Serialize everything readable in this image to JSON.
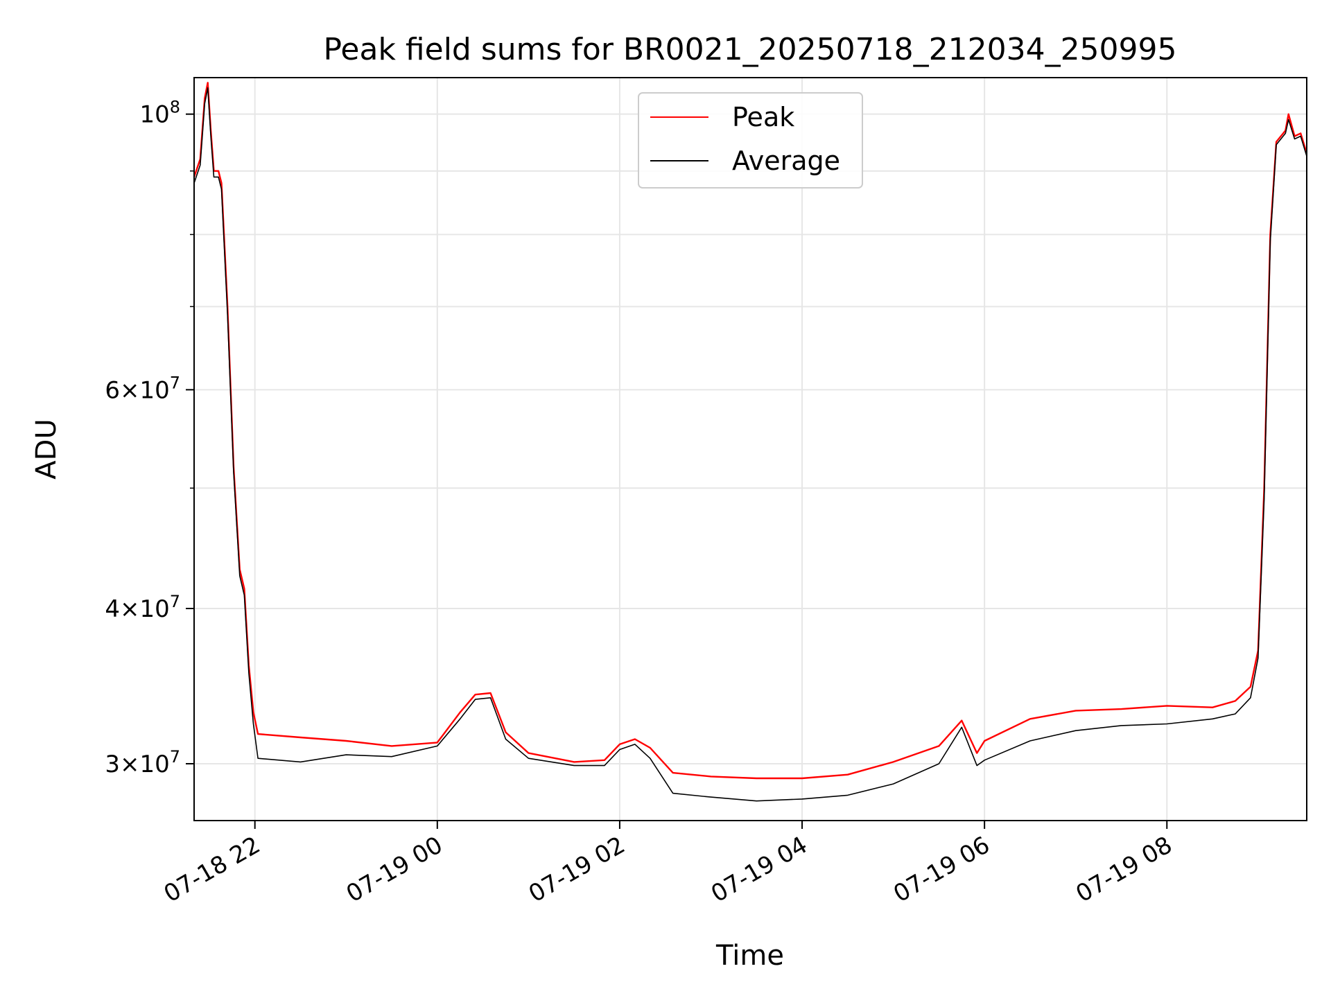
{
  "chart_data": {
    "type": "line",
    "title": "Peak field sums for BR0021_20250718_212034_250995",
    "xlabel": "Time",
    "ylabel": "ADU",
    "yscale": "log",
    "grid": true,
    "legend_position": "top-center",
    "xlim": [
      "2025-07-18 21:20",
      "2025-07-19 09:32"
    ],
    "ylim": [
      27000000,
      107000000
    ],
    "x_ticks": [
      {
        "value": "2025-07-18 22:00",
        "label": "07-18 22"
      },
      {
        "value": "2025-07-19 00:00",
        "label": "07-19 00"
      },
      {
        "value": "2025-07-19 02:00",
        "label": "07-19 02"
      },
      {
        "value": "2025-07-19 04:00",
        "label": "07-19 04"
      },
      {
        "value": "2025-07-19 06:00",
        "label": "07-19 06"
      },
      {
        "value": "2025-07-19 08:00",
        "label": "07-19 08"
      }
    ],
    "y_ticks_major": [
      {
        "value": 30000000,
        "base": "3",
        "exp": "7"
      },
      {
        "value": 40000000,
        "base": "4",
        "exp": "7"
      },
      {
        "value": 60000000,
        "base": "6",
        "exp": "7"
      },
      {
        "value": 100000000,
        "base": "",
        "exp": "8"
      }
    ],
    "y_ticks_minor": [
      50000000,
      70000000,
      80000000,
      90000000
    ],
    "series": [
      {
        "name": "Peak",
        "color": "#ff0000",
        "points": [
          [
            "2025-07-18 21:20",
            89000000
          ],
          [
            "2025-07-18 21:24",
            92000000
          ],
          [
            "2025-07-18 21:27",
            103000000
          ],
          [
            "2025-07-18 21:29",
            106000000
          ],
          [
            "2025-07-18 21:31",
            97000000
          ],
          [
            "2025-07-18 21:33",
            90000000
          ],
          [
            "2025-07-18 21:36",
            90000000
          ],
          [
            "2025-07-18 21:38",
            88000000
          ],
          [
            "2025-07-18 21:42",
            70000000
          ],
          [
            "2025-07-18 21:46",
            52000000
          ],
          [
            "2025-07-18 21:50",
            43000000
          ],
          [
            "2025-07-18 21:53",
            41500000
          ],
          [
            "2025-07-18 21:56",
            36000000
          ],
          [
            "2025-07-18 21:59",
            33000000
          ],
          [
            "2025-07-18 22:02",
            31700000
          ],
          [
            "2025-07-18 22:30",
            31500000
          ],
          [
            "2025-07-18 23:00",
            31300000
          ],
          [
            "2025-07-18 23:30",
            31000000
          ],
          [
            "2025-07-19 00:00",
            31200000
          ],
          [
            "2025-07-19 00:15",
            33000000
          ],
          [
            "2025-07-19 00:25",
            34100000
          ],
          [
            "2025-07-19 00:35",
            34200000
          ],
          [
            "2025-07-19 00:45",
            31800000
          ],
          [
            "2025-07-19 01:00",
            30600000
          ],
          [
            "2025-07-19 01:30",
            30100000
          ],
          [
            "2025-07-19 01:50",
            30200000
          ],
          [
            "2025-07-19 02:00",
            31100000
          ],
          [
            "2025-07-19 02:10",
            31400000
          ],
          [
            "2025-07-19 02:20",
            30900000
          ],
          [
            "2025-07-19 02:35",
            29500000
          ],
          [
            "2025-07-19 03:00",
            29300000
          ],
          [
            "2025-07-19 03:30",
            29200000
          ],
          [
            "2025-07-19 04:00",
            29200000
          ],
          [
            "2025-07-19 04:30",
            29400000
          ],
          [
            "2025-07-19 05:00",
            30100000
          ],
          [
            "2025-07-19 05:30",
            31000000
          ],
          [
            "2025-07-19 05:45",
            32500000
          ],
          [
            "2025-07-19 05:55",
            30600000
          ],
          [
            "2025-07-19 06:00",
            31300000
          ],
          [
            "2025-07-19 06:30",
            32600000
          ],
          [
            "2025-07-19 07:00",
            33100000
          ],
          [
            "2025-07-19 07:30",
            33200000
          ],
          [
            "2025-07-19 08:00",
            33400000
          ],
          [
            "2025-07-19 08:30",
            33300000
          ],
          [
            "2025-07-19 08:45",
            33700000
          ],
          [
            "2025-07-19 08:55",
            34600000
          ],
          [
            "2025-07-19 09:00",
            37000000
          ],
          [
            "2025-07-19 09:04",
            50000000
          ],
          [
            "2025-07-19 09:08",
            80000000
          ],
          [
            "2025-07-19 09:12",
            95000000
          ],
          [
            "2025-07-19 09:18",
            97000000
          ],
          [
            "2025-07-19 09:20",
            100000000
          ],
          [
            "2025-07-19 09:24",
            96000000
          ],
          [
            "2025-07-19 09:28",
            96500000
          ],
          [
            "2025-07-19 09:32",
            93000000
          ]
        ]
      },
      {
        "name": "Average",
        "color": "#000000",
        "points": [
          [
            "2025-07-18 21:20",
            88000000
          ],
          [
            "2025-07-18 21:24",
            91000000
          ],
          [
            "2025-07-18 21:27",
            102000000
          ],
          [
            "2025-07-18 21:29",
            105000000
          ],
          [
            "2025-07-18 21:31",
            96000000
          ],
          [
            "2025-07-18 21:33",
            89000000
          ],
          [
            "2025-07-18 21:36",
            89000000
          ],
          [
            "2025-07-18 21:38",
            87000000
          ],
          [
            "2025-07-18 21:42",
            69000000
          ],
          [
            "2025-07-18 21:46",
            51500000
          ],
          [
            "2025-07-18 21:50",
            42500000
          ],
          [
            "2025-07-18 21:53",
            41000000
          ],
          [
            "2025-07-18 21:56",
            35500000
          ],
          [
            "2025-07-18 21:59",
            32300000
          ],
          [
            "2025-07-18 22:02",
            30300000
          ],
          [
            "2025-07-18 22:30",
            30100000
          ],
          [
            "2025-07-18 23:00",
            30500000
          ],
          [
            "2025-07-18 23:30",
            30400000
          ],
          [
            "2025-07-19 00:00",
            31000000
          ],
          [
            "2025-07-19 00:15",
            32600000
          ],
          [
            "2025-07-19 00:25",
            33800000
          ],
          [
            "2025-07-19 00:35",
            33900000
          ],
          [
            "2025-07-19 00:45",
            31400000
          ],
          [
            "2025-07-19 01:00",
            30300000
          ],
          [
            "2025-07-19 01:30",
            29900000
          ],
          [
            "2025-07-19 01:50",
            29900000
          ],
          [
            "2025-07-19 02:00",
            30800000
          ],
          [
            "2025-07-19 02:10",
            31100000
          ],
          [
            "2025-07-19 02:20",
            30300000
          ],
          [
            "2025-07-19 02:35",
            28400000
          ],
          [
            "2025-07-19 03:00",
            28200000
          ],
          [
            "2025-07-19 03:30",
            28000000
          ],
          [
            "2025-07-19 04:00",
            28100000
          ],
          [
            "2025-07-19 04:30",
            28300000
          ],
          [
            "2025-07-19 05:00",
            28900000
          ],
          [
            "2025-07-19 05:30",
            30000000
          ],
          [
            "2025-07-19 05:45",
            32100000
          ],
          [
            "2025-07-19 05:55",
            29900000
          ],
          [
            "2025-07-19 06:00",
            30200000
          ],
          [
            "2025-07-19 06:30",
            31300000
          ],
          [
            "2025-07-19 07:00",
            31900000
          ],
          [
            "2025-07-19 07:30",
            32200000
          ],
          [
            "2025-07-19 08:00",
            32300000
          ],
          [
            "2025-07-19 08:30",
            32600000
          ],
          [
            "2025-07-19 08:45",
            32900000
          ],
          [
            "2025-07-19 08:55",
            33900000
          ],
          [
            "2025-07-19 09:00",
            36500000
          ],
          [
            "2025-07-19 09:04",
            49000000
          ],
          [
            "2025-07-19 09:08",
            79000000
          ],
          [
            "2025-07-19 09:12",
            94500000
          ],
          [
            "2025-07-19 09:18",
            96500000
          ],
          [
            "2025-07-19 09:20",
            99000000
          ],
          [
            "2025-07-19 09:24",
            95500000
          ],
          [
            "2025-07-19 09:28",
            96000000
          ],
          [
            "2025-07-19 09:32",
            92500000
          ]
        ]
      }
    ]
  }
}
